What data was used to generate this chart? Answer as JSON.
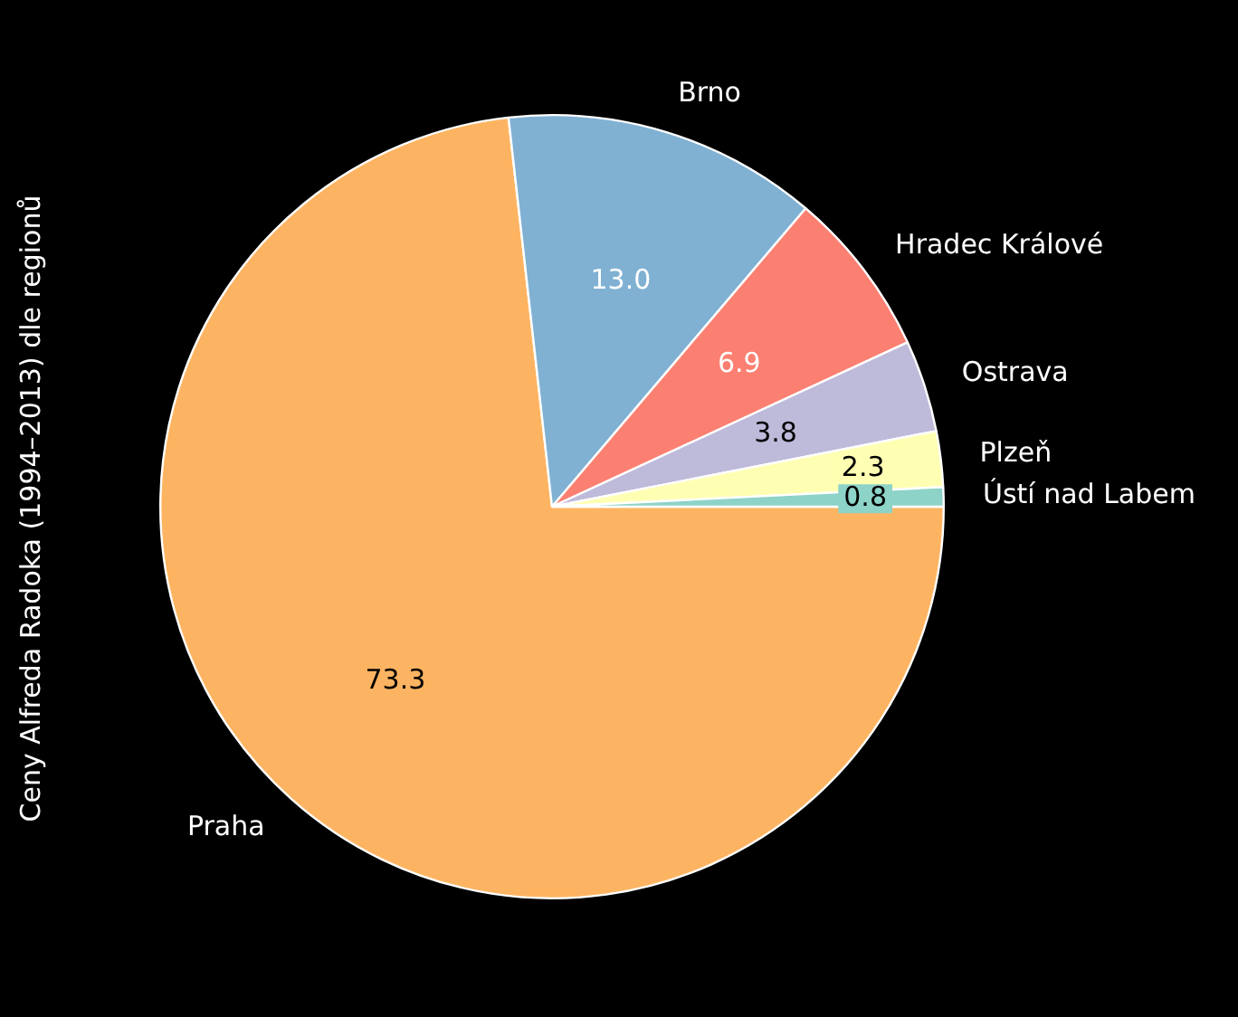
{
  "chart_data": {
    "type": "pie",
    "ylabel": "Ceny Alfreda Radoka (1994–2013) dle regionů",
    "categories": [
      "Ústí nad Labem",
      "Plzeň",
      "Ostrava",
      "Hradec Králové",
      "Brno",
      "Praha"
    ],
    "values": [
      0.8,
      2.3,
      3.8,
      6.9,
      13.0,
      73.3
    ],
    "colors": [
      "#8dd3c7",
      "#ffffb3",
      "#bebada",
      "#fb8072",
      "#80b1d3",
      "#fdb462"
    ],
    "value_labels": [
      "0.8",
      "2.3",
      "3.8",
      "6.9",
      "13.0",
      "73.3"
    ],
    "legend": false
  }
}
